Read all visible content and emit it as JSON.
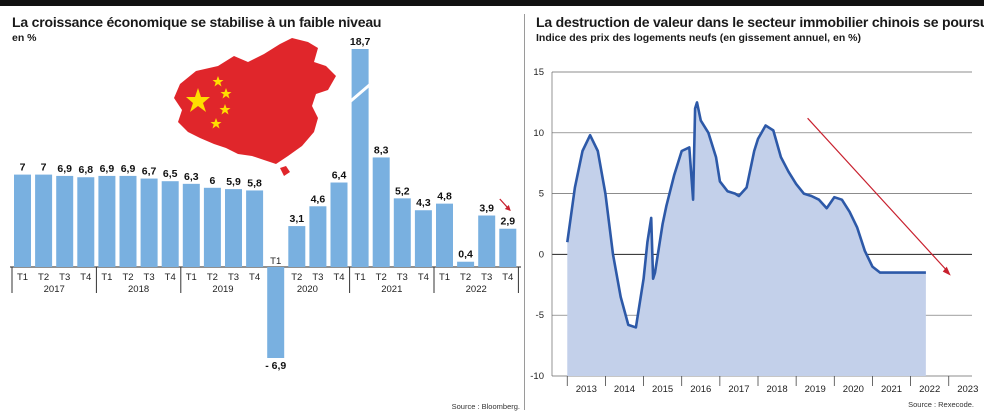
{
  "left": {
    "title": "La croissance économique se stabilise à un faible niveau",
    "subtitle": "en %",
    "source": "Source : Bloomberg."
  },
  "right": {
    "title": "La destruction de valeur dans le secteur immobilier chinois se poursuit",
    "subtitle": "Indice des prix des logements neufs (en gissement annuel, en %)",
    "source": "Source : Rexecode."
  },
  "colors": {
    "bar": "#79b0e0",
    "area": "#c3d0ea",
    "line": "#2d59a8",
    "arrow": "#c8202e",
    "flag_red": "#e0262b",
    "flag_star": "#ffde00"
  },
  "icons": {
    "map": "china-flag-map"
  },
  "chart_data": [
    {
      "type": "bar",
      "title": "La croissance économique se stabilise à un faible niveau",
      "ylabel": "en %",
      "categories": [
        "T1",
        "T2",
        "T3",
        "T4",
        "T1",
        "T2",
        "T3",
        "T4",
        "T1",
        "T2",
        "T3",
        "T4",
        "T1",
        "T2",
        "T3",
        "T4",
        "T1",
        "T2",
        "T3",
        "T4",
        "T1",
        "T2",
        "T3",
        "T4"
      ],
      "years": [
        "2017",
        "2018",
        "2019",
        "2020",
        "2021",
        "2022"
      ],
      "values": [
        7,
        7,
        6.9,
        6.8,
        6.9,
        6.9,
        6.7,
        6.5,
        6.3,
        6,
        5.9,
        5.8,
        -6.9,
        3.1,
        4.6,
        6.4,
        18.7,
        8.3,
        5.2,
        4.3,
        4.8,
        0.4,
        3.9,
        2.9
      ],
      "labels": [
        "7",
        "7",
        "6,9",
        "6,8",
        "6,9",
        "6,9",
        "6,7",
        "6,5",
        "6,3",
        "6",
        "5,9",
        "5,8",
        "- 6,9",
        "3,1",
        "4,6",
        "6,4",
        "18,7",
        "8,3",
        "5,2",
        "4,3",
        "4,8",
        "0,4",
        "3,9",
        "2,9"
      ],
      "ylim": [
        -6.9,
        18.7
      ],
      "axis_break": "bar 2021 T1",
      "annotation": "down arrow above 2022 T4"
    },
    {
      "type": "area",
      "title": "La destruction de valeur dans le secteur immobilier chinois se poursuit",
      "ylabel": "Indice des prix des logements neufs (en gissement annuel, en %)",
      "x_ticks": [
        "2013",
        "2014",
        "2015",
        "2016",
        "2017",
        "2018",
        "2019",
        "2020",
        "2021",
        "2022",
        "2023"
      ],
      "y_ticks": [
        "15",
        "10",
        "5",
        "0",
        "-5",
        "-10"
      ],
      "ylim": [
        -10,
        15
      ],
      "grid": true,
      "x": [
        2013.0,
        2013.2,
        2013.4,
        2013.6,
        2013.8,
        2014.0,
        2014.2,
        2014.4,
        2014.6,
        2014.8,
        2015.0,
        2015.1,
        2015.2,
        2015.25,
        2015.3,
        2015.4,
        2015.5,
        2015.6,
        2015.8,
        2016.0,
        2016.2,
        2016.3,
        2016.35,
        2016.4,
        2016.5,
        2016.7,
        2016.9,
        2017.0,
        2017.2,
        2017.4,
        2017.5,
        2017.7,
        2017.9,
        2018.0,
        2018.2,
        2018.4,
        2018.6,
        2018.8,
        2019.0,
        2019.2,
        2019.4,
        2019.6,
        2019.8,
        2020.0,
        2020.2,
        2020.4,
        2020.6,
        2020.8,
        2021.0,
        2021.2,
        2021.4,
        2021.6,
        2021.8,
        2022.0,
        2022.2,
        2022.4
      ],
      "y": [
        1,
        5.5,
        8.5,
        9.8,
        8.5,
        5,
        0,
        -3.5,
        -5.8,
        -6,
        -2,
        1,
        3,
        -2,
        -1.5,
        0.5,
        2.5,
        4,
        6.5,
        8.5,
        8.8,
        4.5,
        12,
        12.5,
        11,
        10,
        8,
        6,
        5.2,
        5,
        4.8,
        5.5,
        8.5,
        9.5,
        10.6,
        10.2,
        8,
        6.8,
        5.8,
        5,
        4.8,
        4.5,
        3.8,
        4.7,
        4.5,
        3.5,
        2.2,
        0.3,
        -1,
        -1.5,
        -1.5,
        -1.5,
        -1.5,
        -1.5,
        -1.5,
        -1.5
      ],
      "trend_arrow": {
        "from": [
          2019.3,
          11.2
        ],
        "to": [
          2023.0,
          -1.5
        ]
      }
    }
  ]
}
